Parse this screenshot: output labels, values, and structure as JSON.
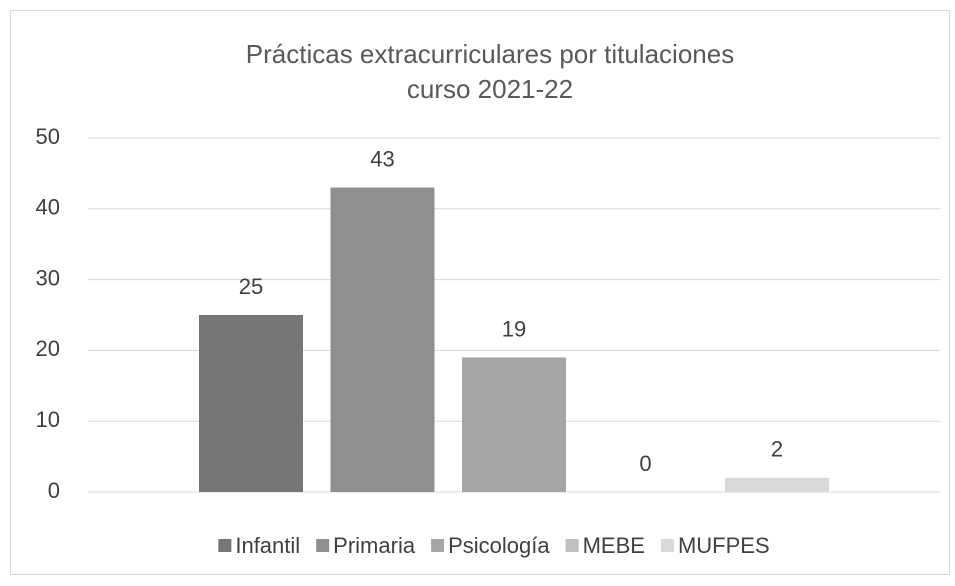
{
  "chart_data": {
    "type": "bar",
    "title": [
      "Prácticas extracurriculares por titulaciones",
      "curso 2021-22"
    ],
    "categories": [
      null
    ],
    "series": [
      {
        "name": "Infantil",
        "color": "#767676",
        "values": [
          25
        ]
      },
      {
        "name": "Primaria",
        "color": "#8f8f8f",
        "values": [
          43
        ]
      },
      {
        "name": "Psicología",
        "color": "#a5a5a5",
        "values": [
          19
        ]
      },
      {
        "name": "MEBE",
        "color": "#bfbfbf",
        "values": [
          0
        ]
      },
      {
        "name": "MUFPES",
        "color": "#d9d9d9",
        "values": [
          2
        ]
      }
    ],
    "ylim": [
      0,
      50
    ],
    "yticks": [
      0,
      10,
      20,
      30,
      40,
      50
    ],
    "grid": true,
    "legend": "bottom"
  }
}
